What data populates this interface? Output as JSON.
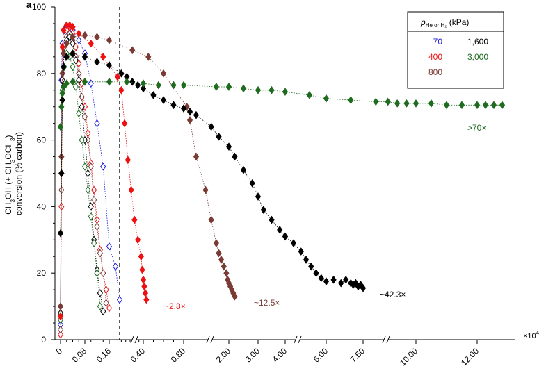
{
  "panel_label": "a",
  "chart_data": {
    "type": "scatter",
    "ylabel_lines": [
      "CH3OH (+ CH3OCH3)",
      "conversion (% carbon)"
    ],
    "ylim": [
      0,
      100
    ],
    "yticks": [
      0,
      20,
      40,
      60,
      80,
      100
    ],
    "x_multiplier": "×10",
    "x_multiplier_exp": "4",
    "xticks": [
      "0",
      "0.08",
      "0.16",
      "0.40",
      "0.80",
      "2.00",
      "3.00",
      "4.00",
      "6.00",
      "7.50",
      "10.00",
      "12.00"
    ],
    "axis_break_after": [
      "0.80",
      "4.00",
      "7.50"
    ],
    "dashed_divider_at": 0.185,
    "legend": {
      "header_p": "p",
      "header_sub": "He or H2",
      "header_unit": " (kPa)",
      "entries": [
        {
          "label": "70",
          "color": "#1a1adc"
        },
        {
          "label": "1,600",
          "color": "#000000"
        },
        {
          "label": "400",
          "color": "#ee1111"
        },
        {
          "label": "3,000",
          "color": "#1f6b1f"
        },
        {
          "label": "800",
          "color": "#7a3b35"
        }
      ]
    },
    "annotations": [
      {
        "text": "~2.8×",
        "color": "#ee1111"
      },
      {
        "text": "~12.5×",
        "color": "#7a3b35"
      },
      {
        "text": "~42.3×",
        "color": "#000000"
      },
      {
        "text": ">70×",
        "color": "#1f6b1f"
      }
    ],
    "series": [
      {
        "name": "70 (He)",
        "color": "#1a1adc",
        "marker": "open",
        "x": [
          0,
          0.003,
          0.006,
          0.012,
          0.02,
          0.03,
          0.04,
          0.06,
          0.08,
          0.1,
          0.12,
          0.14,
          0.16,
          0.175,
          0.185
        ],
        "y": [
          4.5,
          78,
          89,
          93,
          94,
          94,
          93,
          90,
          86,
          77,
          65,
          52,
          28,
          22,
          12
        ]
      },
      {
        "name": "400 (He)",
        "color": "#ee1111",
        "marker": "open",
        "x": [
          0,
          0.003,
          0.006,
          0.012,
          0.02,
          0.03,
          0.04,
          0.05,
          0.06,
          0.07,
          0.08,
          0.09,
          0.1,
          0.11,
          0.12,
          0.13,
          0.14,
          0.15,
          0.16
        ],
        "y": [
          1.5,
          40,
          72,
          88,
          93,
          94,
          92,
          88,
          83,
          77,
          70,
          62,
          53,
          45,
          36,
          27,
          20,
          15,
          9.5
        ]
      },
      {
        "name": "800 (He)",
        "color": "#7a3b35",
        "marker": "open",
        "x": [
          0,
          0.003,
          0.006,
          0.012,
          0.02,
          0.03,
          0.04,
          0.05,
          0.06,
          0.07,
          0.08,
          0.09,
          0.1,
          0.11,
          0.12,
          0.13,
          0.14,
          0.15
        ],
        "y": [
          3,
          45,
          78,
          88,
          91,
          92,
          90,
          85,
          80,
          73,
          67,
          60,
          52,
          42,
          34,
          26,
          20,
          11
        ]
      },
      {
        "name": "1,600 (He)",
        "color": "#000000",
        "marker": "open",
        "x": [
          0,
          0.003,
          0.006,
          0.012,
          0.02,
          0.03,
          0.04,
          0.05,
          0.06,
          0.07,
          0.08,
          0.09,
          0.1,
          0.11,
          0.12,
          0.13,
          0.14
        ],
        "y": [
          8,
          50,
          78,
          86,
          90,
          91,
          89,
          84,
          78,
          70,
          60,
          50,
          40,
          30,
          21,
          14,
          8.5
        ]
      },
      {
        "name": "3,000 (He)",
        "color": "#1f6b1f",
        "marker": "open",
        "x": [
          0,
          0.003,
          0.006,
          0.012,
          0.02,
          0.03,
          0.04,
          0.05,
          0.06,
          0.07,
          0.08,
          0.09,
          0.1,
          0.11,
          0.12,
          0.13
        ],
        "y": [
          6,
          55,
          75,
          82,
          86,
          85,
          82,
          76,
          68,
          60,
          52,
          45,
          37,
          29,
          20,
          10
        ]
      },
      {
        "name": "400 (H2)",
        "color": "#ee1111",
        "marker": "filled",
        "x": [
          0,
          0.003,
          0.006,
          0.01,
          0.02,
          0.03,
          0.04,
          0.06,
          0.1,
          0.14,
          0.18,
          0.2,
          0.23,
          0.26,
          0.29,
          0.32,
          0.35,
          0.38,
          0.39,
          0.4,
          0.41,
          0.42,
          0.43
        ],
        "y": [
          7,
          50,
          88,
          93,
          94.5,
          94.5,
          94,
          92,
          89,
          85,
          79,
          75,
          65,
          54,
          45,
          36,
          30,
          25,
          21,
          18,
          16,
          14,
          12
        ]
      },
      {
        "name": "800 (H2)",
        "color": "#7a3b35",
        "marker": "filled",
        "x": [
          0,
          0.003,
          0.006,
          0.01,
          0.02,
          0.04,
          0.08,
          0.12,
          0.16,
          0.3,
          0.45,
          0.6,
          0.85,
          0.9,
          1.0,
          1.15,
          1.3,
          1.5,
          1.6,
          1.7,
          1.8,
          1.9,
          1.95,
          2.0,
          2.05,
          2.1,
          2.15,
          2.2
        ],
        "y": [
          10,
          55,
          80,
          86,
          89,
          91,
          91.5,
          91,
          90,
          87,
          85,
          80,
          70,
          66,
          55,
          45,
          36,
          29,
          26,
          24,
          22,
          20,
          18,
          17,
          16,
          15,
          14,
          13
        ]
      },
      {
        "name": "1,600 (H2)",
        "color": "#000000",
        "marker": "filled",
        "x": [
          0,
          0.003,
          0.006,
          0.01,
          0.02,
          0.04,
          0.08,
          0.12,
          0.16,
          0.2,
          0.25,
          0.3,
          0.35,
          0.4,
          0.5,
          0.6,
          0.7,
          0.8,
          0.9,
          1.0,
          1.3,
          1.6,
          2.0,
          2.2,
          2.5,
          2.8,
          3.0,
          3.2,
          3.5,
          3.8,
          4.0,
          4.2,
          4.5,
          4.8,
          5.1,
          5.4,
          5.7,
          6.0,
          6.3,
          6.6,
          6.8,
          7.0,
          7.1,
          7.2,
          7.3,
          7.4,
          7.5
        ],
        "y": [
          32,
          50,
          72,
          82,
          85,
          86,
          85,
          83.5,
          82.5,
          80,
          79,
          77.5,
          76.5,
          75.5,
          73.5,
          72,
          70.5,
          69.5,
          68.5,
          67.5,
          64,
          61,
          58,
          55,
          51,
          47,
          43,
          39,
          36,
          33,
          31,
          29,
          26.5,
          24,
          22,
          20,
          18.5,
          17.5,
          18,
          17,
          18,
          17,
          16.5,
          17,
          16,
          16.5,
          15.5
        ]
      },
      {
        "name": "3,000 (H2)",
        "color": "#1f6b1f",
        "marker": "filled",
        "x": [
          0,
          0.003,
          0.006,
          0.01,
          0.02,
          0.04,
          0.08,
          0.16,
          0.25,
          0.4,
          0.55,
          0.7,
          0.8,
          1.5,
          2.0,
          2.5,
          3.0,
          3.5,
          4.0,
          5.0,
          6.0,
          7.0,
          8.0,
          8.5,
          9.0,
          9.5,
          10.0,
          10.5,
          11.0,
          11.5,
          12.0,
          12.5,
          13.0,
          13.5
        ],
        "y": [
          64,
          70,
          74,
          76,
          77,
          77.5,
          77.5,
          77.5,
          77.5,
          77,
          76.5,
          76.5,
          76.5,
          76,
          76,
          75.5,
          75,
          75,
          74.5,
          73.5,
          72.5,
          72,
          71.5,
          71.5,
          71,
          71,
          71,
          71,
          70.5,
          70.5,
          70.5,
          70.5,
          70.5,
          70.5
        ]
      }
    ]
  }
}
